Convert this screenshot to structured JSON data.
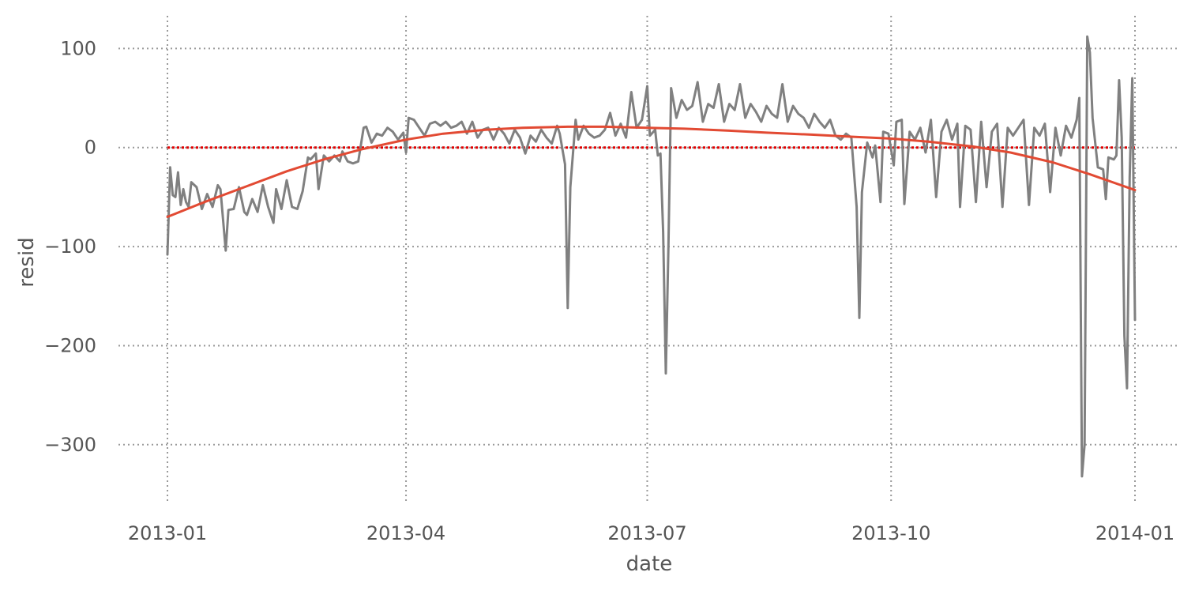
{
  "chart_data": {
    "type": "line",
    "title": "",
    "xlabel": "date",
    "ylabel": "resid",
    "x_range": [
      "2013-01-01",
      "2014-01-01"
    ],
    "ylim": [
      -352,
      133
    ],
    "grid": true,
    "x_ticks": [
      {
        "date": "2013-01-01",
        "label": "2013-01"
      },
      {
        "date": "2013-04-01",
        "label": "2013-04"
      },
      {
        "date": "2013-07-01",
        "label": "2013-07"
      },
      {
        "date": "2013-10-01",
        "label": "2013-10"
      },
      {
        "date": "2014-01-01",
        "label": "2014-01"
      }
    ],
    "y_ticks": [
      {
        "value": 100,
        "label": "100"
      },
      {
        "value": 0,
        "label": "0"
      },
      {
        "value": -100,
        "label": "−100"
      },
      {
        "value": -200,
        "label": "−200"
      },
      {
        "value": -300,
        "label": "−300"
      }
    ],
    "reference_line": {
      "y": 0,
      "color": "#e00000",
      "style": "dotted"
    },
    "series": [
      {
        "color": "#808080",
        "style": "solid",
        "points": [
          [
            "2013-01-01",
            -108
          ],
          [
            "2013-01-02",
            -20
          ],
          [
            "2013-01-03",
            -48
          ],
          [
            "2013-01-04",
            -50
          ],
          [
            "2013-01-05",
            -25
          ],
          [
            "2013-01-06",
            -58
          ],
          [
            "2013-01-07",
            -42
          ],
          [
            "2013-01-08",
            -55
          ],
          [
            "2013-01-09",
            -60
          ],
          [
            "2013-01-10",
            -35
          ],
          [
            "2013-01-12",
            -40
          ],
          [
            "2013-01-14",
            -62
          ],
          [
            "2013-01-16",
            -47
          ],
          [
            "2013-01-18",
            -60
          ],
          [
            "2013-01-20",
            -38
          ],
          [
            "2013-01-21",
            -42
          ],
          [
            "2013-01-23",
            -104
          ],
          [
            "2013-01-24",
            -63
          ],
          [
            "2013-01-26",
            -62
          ],
          [
            "2013-01-28",
            -40
          ],
          [
            "2013-01-30",
            -65
          ],
          [
            "2013-01-31",
            -68
          ],
          [
            "2013-02-02",
            -52
          ],
          [
            "2013-02-04",
            -65
          ],
          [
            "2013-02-06",
            -38
          ],
          [
            "2013-02-08",
            -60
          ],
          [
            "2013-02-10",
            -76
          ],
          [
            "2013-02-11",
            -42
          ],
          [
            "2013-02-13",
            -62
          ],
          [
            "2013-02-15",
            -33
          ],
          [
            "2013-02-17",
            -60
          ],
          [
            "2013-02-19",
            -62
          ],
          [
            "2013-02-21",
            -44
          ],
          [
            "2013-02-23",
            -10
          ],
          [
            "2013-02-24",
            -12
          ],
          [
            "2013-02-26",
            -6
          ],
          [
            "2013-02-27",
            -42
          ],
          [
            "2013-03-01",
            -8
          ],
          [
            "2013-03-03",
            -14
          ],
          [
            "2013-03-05",
            -8
          ],
          [
            "2013-03-07",
            -14
          ],
          [
            "2013-03-08",
            -4
          ],
          [
            "2013-03-10",
            -14
          ],
          [
            "2013-03-12",
            -16
          ],
          [
            "2013-03-14",
            -14
          ],
          [
            "2013-03-16",
            20
          ],
          [
            "2013-03-17",
            21
          ],
          [
            "2013-03-19",
            5
          ],
          [
            "2013-03-21",
            14
          ],
          [
            "2013-03-23",
            12
          ],
          [
            "2013-03-25",
            20
          ],
          [
            "2013-03-27",
            16
          ],
          [
            "2013-03-29",
            8
          ],
          [
            "2013-03-31",
            15
          ],
          [
            "2013-04-01",
            -5
          ],
          [
            "2013-04-02",
            30
          ],
          [
            "2013-04-04",
            28
          ],
          [
            "2013-04-06",
            20
          ],
          [
            "2013-04-08",
            12
          ],
          [
            "2013-04-10",
            24
          ],
          [
            "2013-04-12",
            26
          ],
          [
            "2013-04-14",
            22
          ],
          [
            "2013-04-16",
            26
          ],
          [
            "2013-04-18",
            20
          ],
          [
            "2013-04-20",
            22
          ],
          [
            "2013-04-22",
            26
          ],
          [
            "2013-04-24",
            14
          ],
          [
            "2013-04-26",
            26
          ],
          [
            "2013-04-28",
            10
          ],
          [
            "2013-04-30",
            18
          ],
          [
            "2013-05-02",
            20
          ],
          [
            "2013-05-04",
            8
          ],
          [
            "2013-05-06",
            20
          ],
          [
            "2013-05-08",
            14
          ],
          [
            "2013-05-10",
            4
          ],
          [
            "2013-05-12",
            18
          ],
          [
            "2013-05-14",
            10
          ],
          [
            "2013-05-16",
            -6
          ],
          [
            "2013-05-18",
            12
          ],
          [
            "2013-05-20",
            6
          ],
          [
            "2013-05-22",
            18
          ],
          [
            "2013-05-24",
            10
          ],
          [
            "2013-05-26",
            4
          ],
          [
            "2013-05-28",
            22
          ],
          [
            "2013-05-29",
            14
          ],
          [
            "2013-05-31",
            -17
          ],
          [
            "2013-06-01",
            -162
          ],
          [
            "2013-06-02",
            -40
          ],
          [
            "2013-06-04",
            28
          ],
          [
            "2013-06-05",
            8
          ],
          [
            "2013-06-07",
            22
          ],
          [
            "2013-06-09",
            14
          ],
          [
            "2013-06-11",
            10
          ],
          [
            "2013-06-13",
            12
          ],
          [
            "2013-06-15",
            18
          ],
          [
            "2013-06-17",
            35
          ],
          [
            "2013-06-19",
            12
          ],
          [
            "2013-06-21",
            24
          ],
          [
            "2013-06-23",
            10
          ],
          [
            "2013-06-25",
            56
          ],
          [
            "2013-06-27",
            20
          ],
          [
            "2013-06-29",
            28
          ],
          [
            "2013-07-01",
            62
          ],
          [
            "2013-07-02",
            12
          ],
          [
            "2013-07-04",
            18
          ],
          [
            "2013-07-05",
            -8
          ],
          [
            "2013-07-06",
            -6
          ],
          [
            "2013-07-07",
            -85
          ],
          [
            "2013-07-08",
            -228
          ],
          [
            "2013-07-09",
            -100
          ],
          [
            "2013-07-10",
            60
          ],
          [
            "2013-07-12",
            30
          ],
          [
            "2013-07-14",
            48
          ],
          [
            "2013-07-16",
            38
          ],
          [
            "2013-07-18",
            42
          ],
          [
            "2013-07-20",
            66
          ],
          [
            "2013-07-22",
            26
          ],
          [
            "2013-07-24",
            44
          ],
          [
            "2013-07-26",
            40
          ],
          [
            "2013-07-28",
            64
          ],
          [
            "2013-07-30",
            26
          ],
          [
            "2013-08-01",
            44
          ],
          [
            "2013-08-03",
            38
          ],
          [
            "2013-08-05",
            64
          ],
          [
            "2013-08-07",
            30
          ],
          [
            "2013-08-09",
            44
          ],
          [
            "2013-08-11",
            36
          ],
          [
            "2013-08-13",
            26
          ],
          [
            "2013-08-15",
            42
          ],
          [
            "2013-08-17",
            34
          ],
          [
            "2013-08-19",
            30
          ],
          [
            "2013-08-21",
            64
          ],
          [
            "2013-08-23",
            26
          ],
          [
            "2013-08-25",
            42
          ],
          [
            "2013-08-27",
            34
          ],
          [
            "2013-08-29",
            30
          ],
          [
            "2013-08-31",
            20
          ],
          [
            "2013-09-02",
            34
          ],
          [
            "2013-09-04",
            26
          ],
          [
            "2013-09-06",
            20
          ],
          [
            "2013-09-08",
            28
          ],
          [
            "2013-09-10",
            12
          ],
          [
            "2013-09-12",
            8
          ],
          [
            "2013-09-14",
            14
          ],
          [
            "2013-09-16",
            10
          ],
          [
            "2013-09-18",
            -60
          ],
          [
            "2013-09-19",
            -172
          ],
          [
            "2013-09-20",
            -45
          ],
          [
            "2013-09-22",
            5
          ],
          [
            "2013-09-24",
            -10
          ],
          [
            "2013-09-25",
            2
          ],
          [
            "2013-09-27",
            -55
          ],
          [
            "2013-09-28",
            16
          ],
          [
            "2013-09-30",
            14
          ],
          [
            "2013-10-02",
            -18
          ],
          [
            "2013-10-03",
            26
          ],
          [
            "2013-10-05",
            28
          ],
          [
            "2013-10-06",
            -57
          ],
          [
            "2013-10-08",
            16
          ],
          [
            "2013-10-10",
            8
          ],
          [
            "2013-10-12",
            20
          ],
          [
            "2013-10-14",
            -5
          ],
          [
            "2013-10-16",
            28
          ],
          [
            "2013-10-18",
            -50
          ],
          [
            "2013-10-20",
            16
          ],
          [
            "2013-10-22",
            28
          ],
          [
            "2013-10-24",
            8
          ],
          [
            "2013-10-26",
            24
          ],
          [
            "2013-10-27",
            -60
          ],
          [
            "2013-10-29",
            22
          ],
          [
            "2013-10-31",
            18
          ],
          [
            "2013-11-02",
            -55
          ],
          [
            "2013-11-04",
            26
          ],
          [
            "2013-11-06",
            -40
          ],
          [
            "2013-11-08",
            16
          ],
          [
            "2013-11-10",
            24
          ],
          [
            "2013-11-12",
            -60
          ],
          [
            "2013-11-14",
            20
          ],
          [
            "2013-11-16",
            12
          ],
          [
            "2013-11-18",
            20
          ],
          [
            "2013-11-20",
            28
          ],
          [
            "2013-11-22",
            -58
          ],
          [
            "2013-11-24",
            20
          ],
          [
            "2013-11-26",
            12
          ],
          [
            "2013-11-28",
            24
          ],
          [
            "2013-11-30",
            -45
          ],
          [
            "2013-12-02",
            20
          ],
          [
            "2013-12-04",
            -8
          ],
          [
            "2013-12-06",
            22
          ],
          [
            "2013-12-08",
            10
          ],
          [
            "2013-12-10",
            28
          ],
          [
            "2013-12-11",
            50
          ],
          [
            "2013-12-12",
            -332
          ],
          [
            "2013-12-13",
            -300
          ],
          [
            "2013-12-14",
            112
          ],
          [
            "2013-12-15",
            96
          ],
          [
            "2013-12-16",
            30
          ],
          [
            "2013-12-18",
            -20
          ],
          [
            "2013-12-20",
            -22
          ],
          [
            "2013-12-21",
            -52
          ],
          [
            "2013-12-22",
            -10
          ],
          [
            "2013-12-24",
            -12
          ],
          [
            "2013-12-25",
            -8
          ],
          [
            "2013-12-26",
            68
          ],
          [
            "2013-12-27",
            10
          ],
          [
            "2013-12-28",
            -190
          ],
          [
            "2013-12-29",
            -243
          ],
          [
            "2013-12-30",
            -30
          ],
          [
            "2013-12-31",
            70
          ],
          [
            "2014-01-01",
            -174
          ]
        ]
      },
      {
        "color": "#e24a33",
        "style": "solid",
        "points": [
          [
            "2013-01-01",
            -70
          ],
          [
            "2013-01-15",
            -55
          ],
          [
            "2013-02-01",
            -38
          ],
          [
            "2013-02-15",
            -24
          ],
          [
            "2013-03-01",
            -12
          ],
          [
            "2013-03-15",
            -2
          ],
          [
            "2013-04-01",
            8
          ],
          [
            "2013-04-15",
            14
          ],
          [
            "2013-05-01",
            18
          ],
          [
            "2013-05-15",
            20
          ],
          [
            "2013-06-01",
            21
          ],
          [
            "2013-06-15",
            21
          ],
          [
            "2013-07-01",
            20
          ],
          [
            "2013-07-15",
            19
          ],
          [
            "2013-08-01",
            17
          ],
          [
            "2013-08-15",
            15
          ],
          [
            "2013-09-01",
            13
          ],
          [
            "2013-09-15",
            11
          ],
          [
            "2013-10-01",
            9
          ],
          [
            "2013-10-15",
            6
          ],
          [
            "2013-11-01",
            1
          ],
          [
            "2013-11-15",
            -5
          ],
          [
            "2013-12-01",
            -15
          ],
          [
            "2013-12-15",
            -27
          ],
          [
            "2014-01-01",
            -43
          ]
        ]
      }
    ]
  }
}
